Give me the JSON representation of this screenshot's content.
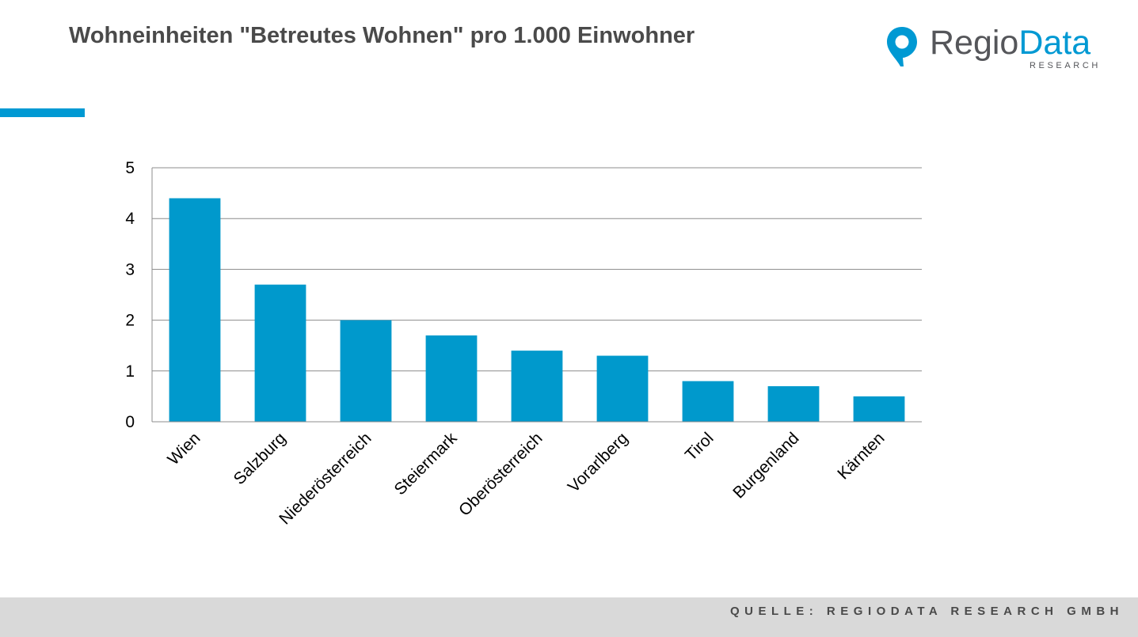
{
  "title": "Wohneinheiten \"Betreutes Wohnen\" pro 1.000 Einwohner",
  "logo": {
    "word_part1": "Regio",
    "word_part2": "Data",
    "subtitle": "RESEARCH",
    "icon": "map-pin-icon"
  },
  "footer": {
    "source": "QUELLE: REGIODATA RESEARCH GMBH"
  },
  "colors": {
    "accent": "#0099d3",
    "bar": "#0099cc",
    "grid": "#8c8c8c",
    "text": "#4a4a4a"
  },
  "chart_data": {
    "type": "bar",
    "title": "",
    "xlabel": "",
    "ylabel": "",
    "categories": [
      "Wien",
      "Salzburg",
      "Niederösterreich",
      "Steiermark",
      "Oberösterreich",
      "Vorarlberg",
      "Tirol",
      "Burgenland",
      "Kärnten"
    ],
    "values": [
      4.4,
      2.7,
      2.0,
      1.7,
      1.4,
      1.3,
      0.8,
      0.7,
      0.5
    ],
    "yticks": [
      "0",
      "1",
      "2",
      "3",
      "4",
      "5"
    ],
    "ylim": [
      0,
      5
    ],
    "grid": true,
    "legend": "none"
  }
}
